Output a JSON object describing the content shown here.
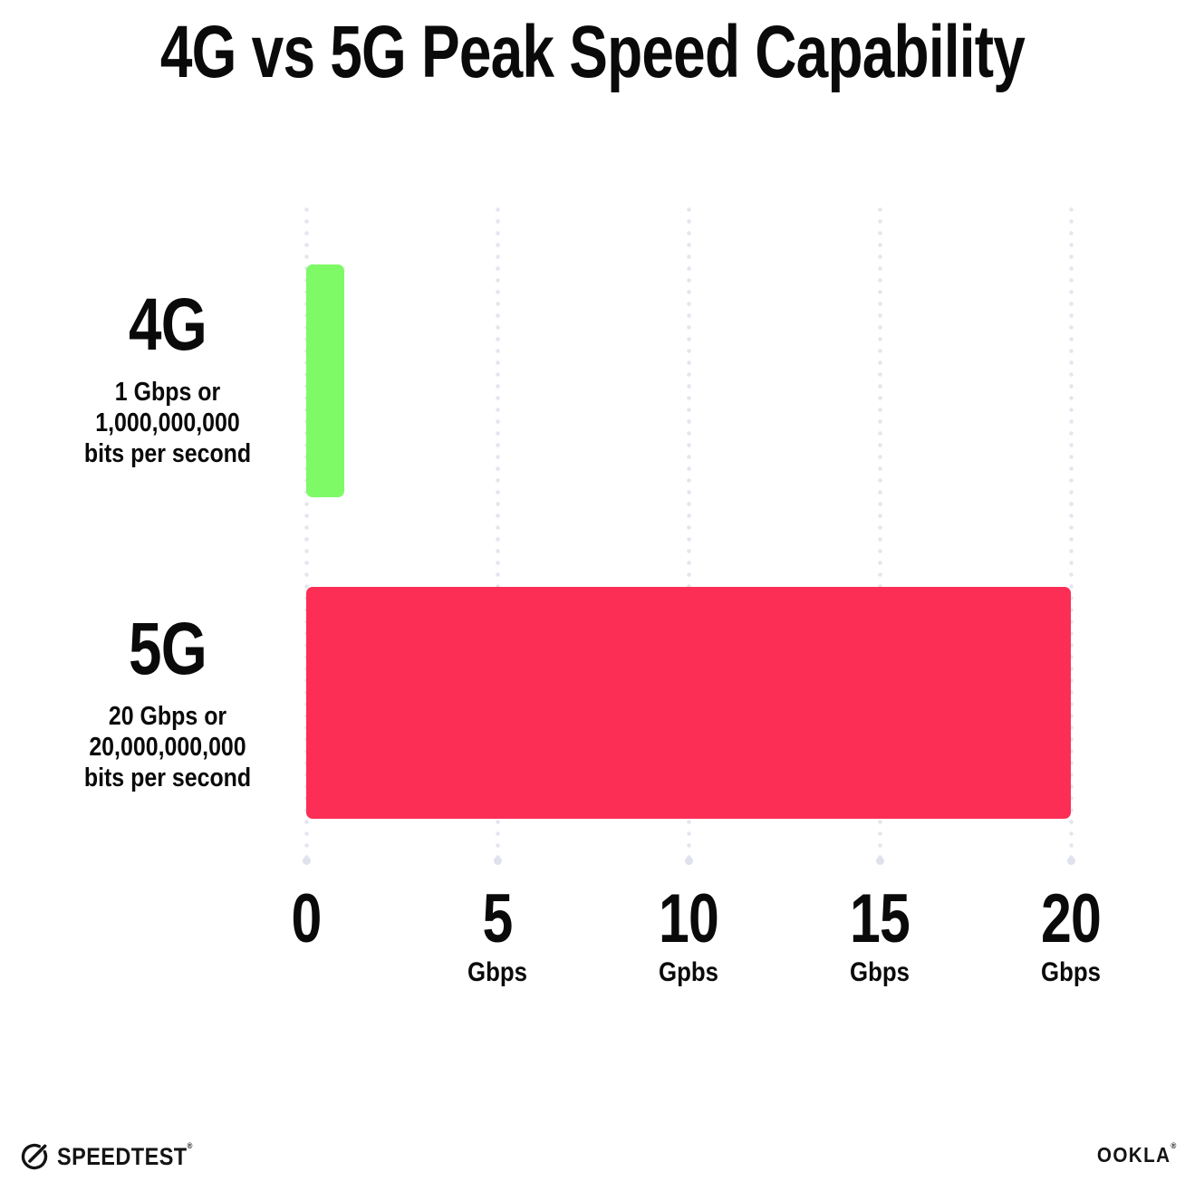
{
  "title": "4G vs 5G Peak Speed Capability",
  "chart_data": {
    "type": "bar",
    "orientation": "horizontal",
    "title": "4G vs 5G Peak Speed Capability",
    "categories": [
      "4G",
      "5G"
    ],
    "values": [
      1,
      20
    ],
    "value_unit": "Gbps",
    "xlim": [
      0,
      20
    ],
    "xticks": [
      0,
      5,
      10,
      15,
      20
    ],
    "bar_colors": [
      "#7EFA66",
      "#FC2E56"
    ],
    "grid": "vertical-dotted",
    "annotations": [
      "4G: 1 Gbps or 1,000,000,000 bits per second",
      "5G: 20 Gbps or 20,000,000,000 bits per second"
    ],
    "legend_position": "none"
  },
  "rows": [
    {
      "label": "4G",
      "desc_line1": "1 Gbps or",
      "desc_line2": "1,000,000,000",
      "desc_line3": "bits per second"
    },
    {
      "label": "5G",
      "desc_line1": "20 Gbps or",
      "desc_line2": "20,000,000,000",
      "desc_line3": "bits per second"
    }
  ],
  "x_axis": {
    "ticks": [
      {
        "number": "0",
        "unit": ""
      },
      {
        "number": "5",
        "unit": "Gbps"
      },
      {
        "number": "10",
        "unit": "Gpbs"
      },
      {
        "number": "15",
        "unit": "Gbps"
      },
      {
        "number": "20",
        "unit": "Gbps"
      }
    ]
  },
  "footer": {
    "speedtest_wordmark": "SPEEDTEST",
    "speedtest_mark": "®",
    "ookla_wordmark": "OOKLA",
    "ookla_mark": "®"
  },
  "colors": {
    "background": "#ffffff",
    "text": "#0a0a0a",
    "gridline_dot": "#e4e5ef",
    "gridline_end_dot": "#dfe2ec",
    "bar_4g": "#7EFA66",
    "bar_5g": "#FC2E56"
  }
}
